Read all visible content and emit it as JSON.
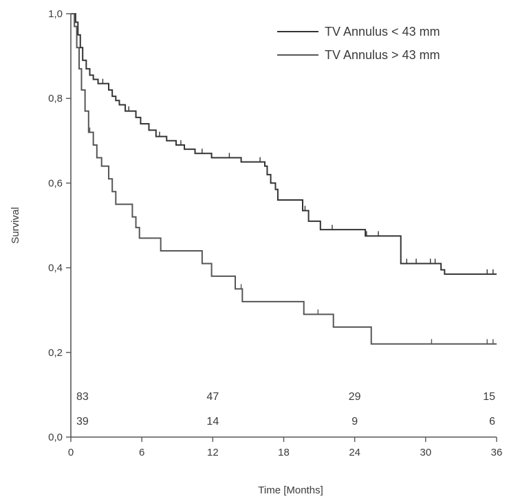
{
  "chart_data": {
    "type": "line",
    "step": true,
    "xlabel": "Time [Months]",
    "ylabel": "Survival",
    "xlim": [
      0,
      36
    ],
    "ylim": [
      0,
      1
    ],
    "x_ticks": [
      0,
      6,
      12,
      18,
      24,
      30,
      36
    ],
    "y_ticks": [
      0.0,
      0.2,
      0.4,
      0.6,
      0.8,
      1.0
    ],
    "x_tick_labels": [
      "0",
      "6",
      "12",
      "18",
      "24",
      "30",
      "36"
    ],
    "y_tick_labels": [
      "0,0",
      "0,2",
      "0,4",
      "0,6",
      "0,8",
      "1,0"
    ],
    "grid": false,
    "legend_position": "top-right",
    "series": [
      {
        "name": "TV Annulus < 43 mm",
        "color": "#333333",
        "steps": [
          [
            0,
            1.0
          ],
          [
            0.4,
            0.98
          ],
          [
            0.6,
            0.95
          ],
          [
            0.8,
            0.92
          ],
          [
            1.0,
            0.89
          ],
          [
            1.3,
            0.87
          ],
          [
            1.6,
            0.855
          ],
          [
            1.9,
            0.845
          ],
          [
            2.3,
            0.835
          ],
          [
            3.2,
            0.82
          ],
          [
            3.5,
            0.805
          ],
          [
            3.8,
            0.795
          ],
          [
            4.1,
            0.785
          ],
          [
            4.6,
            0.77
          ],
          [
            5.5,
            0.755
          ],
          [
            5.9,
            0.74
          ],
          [
            6.6,
            0.725
          ],
          [
            7.2,
            0.71
          ],
          [
            8.1,
            0.7
          ],
          [
            8.9,
            0.69
          ],
          [
            9.6,
            0.68
          ],
          [
            10.5,
            0.67
          ],
          [
            11.9,
            0.66
          ],
          [
            14.4,
            0.65
          ],
          [
            16.4,
            0.64
          ],
          [
            16.6,
            0.62
          ],
          [
            16.9,
            0.6
          ],
          [
            17.3,
            0.585
          ],
          [
            17.5,
            0.56
          ],
          [
            19.6,
            0.535
          ],
          [
            20.1,
            0.51
          ],
          [
            21.1,
            0.49
          ],
          [
            24.9,
            0.475
          ],
          [
            27.9,
            0.41
          ],
          [
            31.3,
            0.395
          ],
          [
            31.6,
            0.385
          ]
        ],
        "end_x": 36,
        "censored_x": [
          2.7,
          3.5,
          4.9,
          7.5,
          9.3,
          11.1,
          11.9,
          13.4,
          14.4,
          16.0,
          17.5,
          19.8,
          22.1,
          25.0,
          26.0,
          28.4,
          29.2,
          30.4,
          30.8,
          31.3,
          35.2,
          35.7
        ]
      },
      {
        "name": "TV Annulus > 43 mm",
        "color": "#555555",
        "steps": [
          [
            0,
            1.0
          ],
          [
            0.3,
            0.97
          ],
          [
            0.5,
            0.92
          ],
          [
            0.7,
            0.87
          ],
          [
            0.9,
            0.82
          ],
          [
            1.2,
            0.77
          ],
          [
            1.5,
            0.72
          ],
          [
            1.9,
            0.69
          ],
          [
            2.2,
            0.66
          ],
          [
            2.6,
            0.64
          ],
          [
            3.2,
            0.61
          ],
          [
            3.5,
            0.58
          ],
          [
            3.8,
            0.55
          ],
          [
            5.2,
            0.52
          ],
          [
            5.5,
            0.495
          ],
          [
            5.8,
            0.47
          ],
          [
            7.6,
            0.44
          ],
          [
            11.1,
            0.41
          ],
          [
            11.9,
            0.38
          ],
          [
            13.9,
            0.35
          ],
          [
            14.5,
            0.32
          ],
          [
            19.7,
            0.29
          ],
          [
            22.2,
            0.26
          ],
          [
            25.4,
            0.22
          ]
        ],
        "end_x": 36,
        "censored_x": [
          1.6,
          14.4,
          20.9,
          30.5,
          35.2,
          35.7
        ]
      }
    ],
    "risk_table": {
      "x": [
        0,
        12,
        24,
        36
      ],
      "rows": [
        {
          "series": "TV Annulus < 43 mm",
          "values": [
            "83",
            "47",
            "29",
            "15"
          ]
        },
        {
          "series": "TV Annulus > 43 mm",
          "values": [
            "39",
            "14",
            "9",
            "6"
          ]
        }
      ]
    }
  }
}
